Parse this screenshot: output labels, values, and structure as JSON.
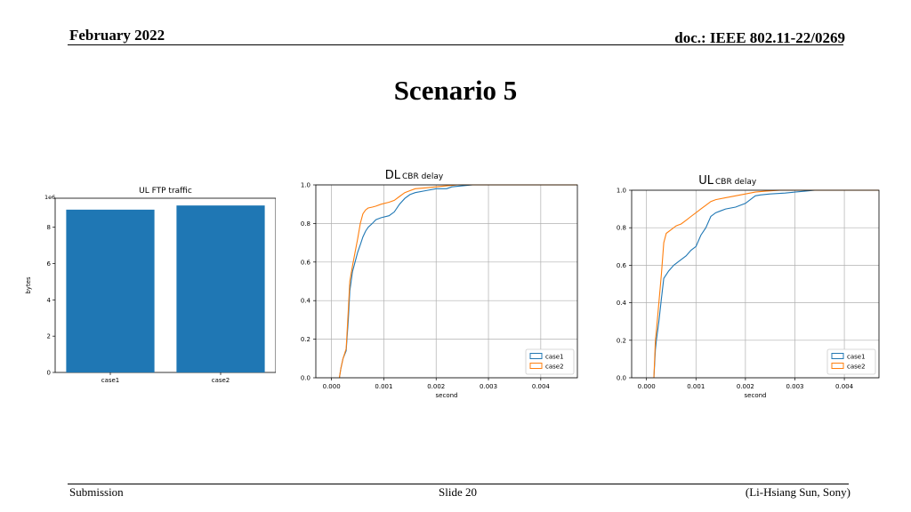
{
  "header": {
    "date": "February 2022",
    "doc": "doc.: IEEE 802.11-22/0269"
  },
  "slide": {
    "title": "Scenario 5"
  },
  "footer": {
    "left": "Submission",
    "center": "Slide 20",
    "right": "(Li-Hsiang Sun, Sony)"
  },
  "chart_data": [
    {
      "type": "bar",
      "title": "UL FTP traffic",
      "xlabel": "",
      "ylabel": "bytes",
      "offset_label": "1e6",
      "categories": [
        "case1",
        "case2"
      ],
      "values": [
        8.97,
        9.2
      ],
      "ylim": [
        0,
        9.6
      ],
      "yticks": [
        "0",
        "2",
        "4",
        "6",
        "8"
      ],
      "bar_color": "#1f77b4",
      "grid": false
    },
    {
      "type": "line",
      "title_prefix": "DL",
      "title": "CBR delay",
      "xlabel": "second",
      "ylabel": "",
      "xlim": [
        -0.0003,
        0.0047
      ],
      "ylim": [
        0,
        1.0
      ],
      "xticks": [
        "0.000",
        "0.001",
        "0.002",
        "0.003",
        "0.004"
      ],
      "yticks": [
        "0.0",
        "0.2",
        "0.4",
        "0.6",
        "0.8",
        "1.0"
      ],
      "legend": "lower-right",
      "grid": true,
      "series": [
        {
          "name": "case1",
          "color": "#1f77b4",
          "x": [
            0.00015,
            0.00018,
            0.00022,
            0.00028,
            0.00032,
            0.00035,
            0.0004,
            0.00045,
            0.0005,
            0.00055,
            0.0006,
            0.00065,
            0.0007,
            0.00078,
            0.00085,
            0.00095,
            0.0011,
            0.0012,
            0.0013,
            0.0014,
            0.0015,
            0.0016,
            0.0018,
            0.002,
            0.0022,
            0.0023,
            0.0025,
            0.0027,
            0.003,
            0.0035,
            0.0047
          ],
          "y": [
            0.0,
            0.05,
            0.1,
            0.14,
            0.3,
            0.45,
            0.55,
            0.6,
            0.65,
            0.69,
            0.73,
            0.76,
            0.78,
            0.8,
            0.82,
            0.83,
            0.84,
            0.86,
            0.9,
            0.93,
            0.95,
            0.96,
            0.97,
            0.98,
            0.98,
            0.99,
            0.995,
            1.0,
            1.0,
            1.0,
            1.0
          ]
        },
        {
          "name": "case2",
          "color": "#ff7f0e",
          "x": [
            0.00015,
            0.00018,
            0.00022,
            0.00028,
            0.00032,
            0.00035,
            0.0004,
            0.00045,
            0.0005,
            0.00055,
            0.0006,
            0.00065,
            0.0007,
            0.00078,
            0.00085,
            0.00095,
            0.0011,
            0.0012,
            0.0013,
            0.0014,
            0.0015,
            0.0016,
            0.0018,
            0.002,
            0.0022,
            0.0024,
            0.0027,
            0.003,
            0.0047
          ],
          "y": [
            0.0,
            0.05,
            0.1,
            0.15,
            0.35,
            0.5,
            0.58,
            0.65,
            0.72,
            0.8,
            0.85,
            0.87,
            0.88,
            0.885,
            0.89,
            0.9,
            0.91,
            0.92,
            0.94,
            0.96,
            0.97,
            0.98,
            0.985,
            0.99,
            0.995,
            1.0,
            1.0,
            1.0,
            1.0
          ]
        }
      ]
    },
    {
      "type": "line",
      "title_prefix": "UL",
      "title": "CBR delay",
      "xlabel": "second",
      "ylabel": "",
      "xlim": [
        -0.0003,
        0.0047
      ],
      "ylim": [
        0,
        1.0
      ],
      "xticks": [
        "0.000",
        "0.001",
        "0.002",
        "0.003",
        "0.004"
      ],
      "yticks": [
        "0.0",
        "0.2",
        "0.4",
        "0.6",
        "0.8",
        "1.0"
      ],
      "legend": "lower-right",
      "grid": true,
      "series": [
        {
          "name": "case1",
          "color": "#1f77b4",
          "x": [
            0.00015,
            0.00018,
            0.0002,
            0.00025,
            0.0003,
            0.00035,
            0.00045,
            0.00055,
            0.00065,
            0.0008,
            0.0009,
            0.001,
            0.0011,
            0.0012,
            0.0013,
            0.0014,
            0.0015,
            0.0016,
            0.0018,
            0.0019,
            0.002,
            0.0021,
            0.0022,
            0.0023,
            0.0025,
            0.0028,
            0.003,
            0.0032,
            0.0034,
            0.0047
          ],
          "y": [
            0.0,
            0.15,
            0.2,
            0.3,
            0.42,
            0.53,
            0.57,
            0.6,
            0.62,
            0.65,
            0.68,
            0.7,
            0.76,
            0.8,
            0.86,
            0.88,
            0.89,
            0.9,
            0.91,
            0.92,
            0.93,
            0.95,
            0.97,
            0.975,
            0.98,
            0.985,
            0.99,
            0.995,
            1.0,
            1.0
          ]
        },
        {
          "name": "case2",
          "color": "#ff7f0e",
          "x": [
            0.00015,
            0.00018,
            0.0002,
            0.00025,
            0.0003,
            0.00035,
            0.0004,
            0.0005,
            0.0006,
            0.0007,
            0.0008,
            0.0009,
            0.001,
            0.0011,
            0.0012,
            0.0013,
            0.0014,
            0.0016,
            0.0018,
            0.002,
            0.0022,
            0.0024,
            0.0027,
            0.003,
            0.0047
          ],
          "y": [
            0.0,
            0.2,
            0.25,
            0.4,
            0.55,
            0.72,
            0.77,
            0.79,
            0.81,
            0.82,
            0.84,
            0.86,
            0.88,
            0.9,
            0.92,
            0.94,
            0.95,
            0.96,
            0.97,
            0.98,
            0.99,
            0.995,
            1.0,
            1.0,
            1.0
          ]
        }
      ]
    }
  ]
}
